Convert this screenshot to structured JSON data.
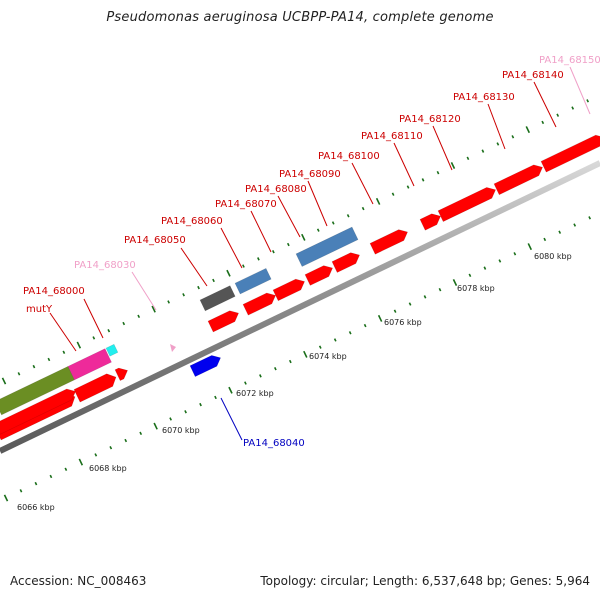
{
  "title": "Pseudomonas aeruginosa UCBPP-PA14, complete genome",
  "footer": {
    "accession": "Accession: NC_008463",
    "summary": "Topology: circular; Length: 6,537,648 bp; Genes: 5,964"
  },
  "colors": {
    "red": "#ff0000",
    "pink_label": "#f0a0c8",
    "blue_label": "#0000c0",
    "tick_green": "#1a6e1a",
    "gray_gene": "#555555",
    "steelblue_gene": "#4a80b8",
    "blue_gene": "#0000ee",
    "olive_gene": "#6b8e23",
    "magenta_gene": "#ee2a9a",
    "cyan_gene": "#22eeee"
  },
  "kbp_ticks": [
    "6066 kbp",
    "6068 kbp",
    "6070 kbp",
    "6072 kbp",
    "6074 kbp",
    "6076 kbp",
    "6078 kbp",
    "6080 kbp"
  ],
  "gene_labels": [
    {
      "id": "PA14_68000",
      "text": "PA14_68000",
      "color": "#cc0000"
    },
    {
      "id": "mutY",
      "text": "mutY",
      "color": "#cc0000"
    },
    {
      "id": "PA14_68030",
      "text": "PA14_68030",
      "color": "#f0a0c8"
    },
    {
      "id": "PA14_68050",
      "text": "PA14_68050",
      "color": "#cc0000"
    },
    {
      "id": "PA14_68060",
      "text": "PA14_68060",
      "color": "#cc0000"
    },
    {
      "id": "PA14_68070",
      "text": "PA14_68070",
      "color": "#cc0000"
    },
    {
      "id": "PA14_68080",
      "text": "PA14_68080",
      "color": "#cc0000"
    },
    {
      "id": "PA14_68090",
      "text": "PA14_68090",
      "color": "#cc0000"
    },
    {
      "id": "PA14_68100",
      "text": "PA14_68100",
      "color": "#cc0000"
    },
    {
      "id": "PA14_68110",
      "text": "PA14_68110",
      "color": "#cc0000"
    },
    {
      "id": "PA14_68120",
      "text": "PA14_68120",
      "color": "#cc0000"
    },
    {
      "id": "PA14_68130",
      "text": "PA14_68130",
      "color": "#cc0000"
    },
    {
      "id": "PA14_68140",
      "text": "PA14_68140",
      "color": "#cc0000"
    },
    {
      "id": "PA14_68150",
      "text": "PA14_68150",
      "color": "#f0a0c8"
    },
    {
      "id": "PA14_68040",
      "text": "PA14_68040",
      "color": "#0000c0"
    }
  ]
}
